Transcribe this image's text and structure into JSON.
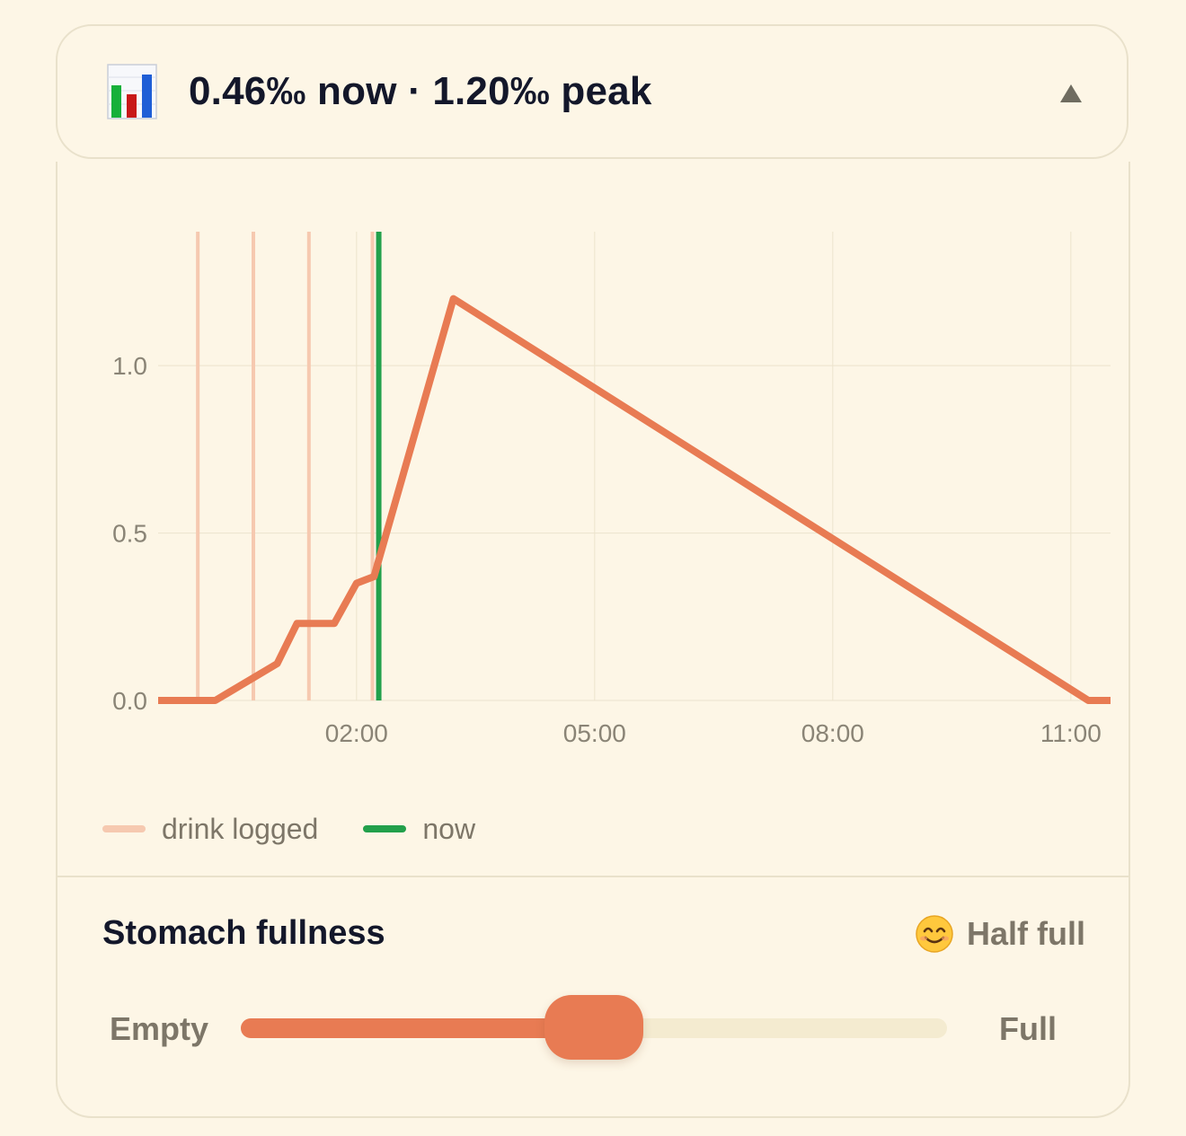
{
  "header": {
    "icon": "bar-chart-emoji-icon",
    "summary": "0.46‰ now · 1.20‰ peak",
    "toggle_icon": "triangle-up-icon"
  },
  "colors": {
    "bac_line": "#e87b53",
    "drink_line": "#f6c9b0",
    "now_line": "#22a04b",
    "grid": "#ece3cd",
    "slider_track": "#f4ebd0"
  },
  "chart_data": {
    "type": "line",
    "x_unit": "hours (clock time)",
    "xlim": [
      -0.5,
      11.5
    ],
    "ylim": [
      0,
      1.4
    ],
    "x_ticks": [
      {
        "value": 2,
        "label": "02:00"
      },
      {
        "value": 5,
        "label": "05:00"
      },
      {
        "value": 8,
        "label": "08:00"
      },
      {
        "value": 11,
        "label": "11:00"
      }
    ],
    "y_ticks": [
      {
        "value": 0,
        "label": "0.0"
      },
      {
        "value": 0.5,
        "label": "0.5"
      },
      {
        "value": 1.0,
        "label": "1.0"
      }
    ],
    "series": [
      {
        "x": [
          -0.5,
          0.22,
          1.0,
          1.25,
          1.72,
          2.0,
          2.22,
          3.22,
          11.22,
          11.5
        ],
        "y": [
          0,
          0,
          0.11,
          0.23,
          0.23,
          0.35,
          0.37,
          1.2,
          0,
          0
        ]
      }
    ],
    "drink_times": [
      0,
      0.7,
      1.4,
      2.2
    ],
    "now": 2.28,
    "legend": [
      {
        "label": "drink logged",
        "color": "#f6c9b0"
      },
      {
        "label": "now",
        "color": "#22a04b"
      }
    ]
  },
  "stomach": {
    "title": "Stomach fullness",
    "status_icon": "smiling-face-icon",
    "status_label": "Half full",
    "min_label": "Empty",
    "max_label": "Full",
    "value": 0.5
  }
}
